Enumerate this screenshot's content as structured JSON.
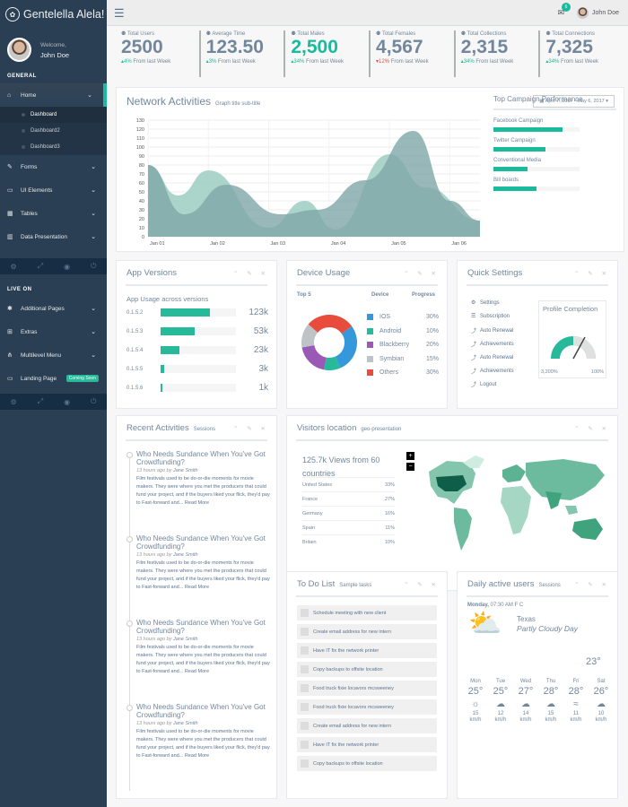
{
  "brand": {
    "title": "Gentelella Alela!",
    "icon": "paw-icon"
  },
  "profile": {
    "welcome": "Welcome,",
    "name": "John Doe"
  },
  "sidebar": {
    "general_label": "GENERAL",
    "home": "Home",
    "sub": [
      "Dashboard",
      "Dashboard2",
      "Dashboard3"
    ],
    "items": [
      "Forms",
      "UI Elements",
      "Tables",
      "Data Presentation"
    ],
    "live_label": "LIVE ON",
    "live_items": [
      "Additional Pages",
      "Extras",
      "Multilevel Menu",
      "Landing Page"
    ],
    "coming_soon": "Coming Soon"
  },
  "topbar": {
    "mail_count": "6",
    "user": "John Doe"
  },
  "tiles": [
    {
      "label": "Total Users",
      "value": "2500",
      "pct": "4%",
      "tail": " From last Week",
      "dir": "up",
      "green": false
    },
    {
      "label": "Average Time",
      "value": "123.50",
      "pct": "3%",
      "tail": " From last Week",
      "dir": "up",
      "green": false
    },
    {
      "label": "Total Males",
      "value": "2,500",
      "pct": "34%",
      "tail": " From last Week",
      "dir": "up",
      "green": true
    },
    {
      "label": "Total Females",
      "value": "4,567",
      "pct": "12%",
      "tail": " From last Week",
      "dir": "down",
      "green": false
    },
    {
      "label": "Total Collections",
      "value": "2,315",
      "pct": "34%",
      "tail": " From last Week",
      "dir": "up",
      "green": false
    },
    {
      "label": "Total Connections",
      "value": "7,325",
      "pct": "34%",
      "tail": " From last Week",
      "dir": "up",
      "green": false
    }
  ],
  "network": {
    "title": "Network Activities",
    "subtitle": "Graph title sub-title",
    "daterange": "April 7, 2017 - May 6, 2017"
  },
  "chart_data": {
    "type": "area",
    "x": [
      "Jan 01",
      "Jan 02",
      "Jan 03",
      "Jan 04",
      "Jan 05",
      "Jan 06"
    ],
    "yticks": [
      0,
      10,
      20,
      30,
      40,
      50,
      60,
      70,
      80,
      90,
      100,
      110,
      120,
      130
    ],
    "ylim": [
      0,
      130
    ],
    "series": [
      {
        "color": "#96CABE",
        "points": [
          [
            0,
            80
          ],
          [
            0.5,
            46
          ],
          [
            1,
            74
          ],
          [
            2,
            10
          ],
          [
            2.6,
            40
          ],
          [
            3.1,
            8
          ],
          [
            4,
            92
          ],
          [
            4.6,
            55
          ],
          [
            5.5,
            18
          ]
        ]
      },
      {
        "color": "#7FA6A8",
        "points": [
          [
            0,
            80
          ],
          [
            0.6,
            25
          ],
          [
            1.3,
            58
          ],
          [
            2.2,
            25
          ],
          [
            2.8,
            30
          ],
          [
            3.6,
            63
          ],
          [
            4.4,
            118
          ],
          [
            5,
            40
          ],
          [
            5.5,
            18
          ]
        ]
      }
    ]
  },
  "campaign": {
    "title": "Top Campaign Performance",
    "items": [
      {
        "label": "Facebook Campaign",
        "value": 80
      },
      {
        "label": "Twitter Campaign",
        "value": 60
      },
      {
        "label": "Conventional Media",
        "value": 40
      },
      {
        "label": "Bill boards",
        "value": 50
      }
    ]
  },
  "app": {
    "title": "App Versions",
    "subtitle": "App Usage across versions",
    "rows": [
      {
        "label": "0.1.5.2",
        "value": "123k",
        "pct": 66
      },
      {
        "label": "0.1.5.3",
        "value": "53k",
        "pct": 45
      },
      {
        "label": "0.1.5.4",
        "value": "23k",
        "pct": 25
      },
      {
        "label": "0.1.5.5",
        "value": "3k",
        "pct": 5
      },
      {
        "label": "0.1.5.6",
        "value": "1k",
        "pct": 2
      }
    ]
  },
  "device": {
    "title": "Device Usage",
    "col1": "Top 5",
    "col2": "Device",
    "col3": "Progress",
    "items": [
      {
        "label": "IOS",
        "pct": "30%",
        "color": "#3498DB",
        "v": 30
      },
      {
        "label": "Android",
        "pct": "10%",
        "color": "#26B99A",
        "v": 10
      },
      {
        "label": "Blackberry",
        "pct": "20%",
        "color": "#9B59B6",
        "v": 20
      },
      {
        "label": "Symbian",
        "pct": "15%",
        "color": "#BDC3C7",
        "v": 15
      },
      {
        "label": "Others",
        "pct": "30%",
        "color": "#E74C3C",
        "v": 30
      }
    ]
  },
  "quick": {
    "title": "Quick Settings",
    "items": [
      "Settings",
      "Subscription",
      "Auto Renewal",
      "Achievements",
      "Auto Renewal",
      "Achievements",
      "Logout"
    ],
    "profile_title": "Profile Completion",
    "gauge_min": "3,200%",
    "gauge_max": "100%"
  },
  "activities": {
    "title": "Recent Activities",
    "subtitle": "Sessions",
    "items": [
      {
        "title": "Who Needs Sundance When You've Got Crowdfunding?",
        "time": "13 hours ago",
        "by": "by",
        "author": "Jane Smith",
        "text": "Film festivals used to be do-or-die moments for movie makers. They were where you met the producers that could fund your project, and if the buyers liked your flick, they'd pay to Fast-forward and...",
        "more": "Read More"
      },
      {
        "title": "Who Needs Sundance When You've Got Crowdfunding?",
        "time": "13 hours ago",
        "by": "by",
        "author": "Jane Smith",
        "text": "Film festivals used to be do-or-die moments for movie makers. They were where you met the producers that could fund your project, and if the buyers liked your flick, they'd pay to Fast-forward and...",
        "more": "Read More"
      },
      {
        "title": "Who Needs Sundance When You've Got Crowdfunding?",
        "time": "13 hours ago",
        "by": "by",
        "author": "Jane Smith",
        "text": "Film festivals used to be do-or-die moments for movie makers. They were where you met the producers that could fund your project, and if the buyers liked your flick, they'd pay to Fast-forward and...",
        "more": "Read More"
      },
      {
        "title": "Who Needs Sundance When You've Got Crowdfunding?",
        "time": "13 hours ago",
        "by": "by",
        "author": "Jane Smith",
        "text": "Film festivals used to be do-or-die moments for movie makers. They were where you met the producers that could fund your project, and if the buyers liked your flick, they'd pay to Fast-forward and...",
        "more": "Read More"
      }
    ]
  },
  "visitors": {
    "title": "Visitors location",
    "subtitle": "geo-presentation",
    "views": "125.7k Views from 60 countries",
    "rows": [
      {
        "country": "United States",
        "pct": "33%"
      },
      {
        "country": "France",
        "pct": "27%"
      },
      {
        "country": "Germany",
        "pct": "16%"
      },
      {
        "country": "Spain",
        "pct": "11%"
      },
      {
        "country": "Britain",
        "pct": "10%"
      }
    ]
  },
  "todo": {
    "title": "To Do List",
    "subtitle": "Sample tasks",
    "items": [
      "Schedule meeting with new client",
      "Create email address for new intern",
      "Have IT fix the network printer",
      "Copy backups to offsite location",
      "Food truck fixie locavors mcsweeney",
      "Food truck fixie locavors mcsweeney",
      "Create email address for new intern",
      "Have IT fix the network printer",
      "Copy backups to offsite location"
    ]
  },
  "weather": {
    "title": "Daily active users",
    "subtitle": "Sessions",
    "date": "Monday,",
    "time": " 07:30 AM F C",
    "city": "Texas",
    "cond": "Partly Cloudy Day",
    "temp": "23°",
    "days": [
      {
        "d": "Mon",
        "t": "25°",
        "w": "15",
        "u": "km/h",
        "icon": "sun-icon",
        "g": "☼"
      },
      {
        "d": "Tue",
        "t": "25°",
        "w": "12",
        "u": "km/h",
        "icon": "cloud-icon",
        "g": "☁"
      },
      {
        "d": "Wed",
        "t": "27°",
        "w": "14",
        "u": "km/h",
        "icon": "cloud-icon",
        "g": "☁"
      },
      {
        "d": "Thu",
        "t": "28°",
        "w": "15",
        "u": "km/h",
        "icon": "cloud-icon",
        "g": "☁"
      },
      {
        "d": "Fri",
        "t": "28°",
        "w": "11",
        "u": "km/h",
        "icon": "wind-icon",
        "g": "≈"
      },
      {
        "d": "Sat",
        "t": "26°",
        "w": "10",
        "u": "km/h",
        "icon": "cloud-icon",
        "g": "☁"
      }
    ]
  }
}
